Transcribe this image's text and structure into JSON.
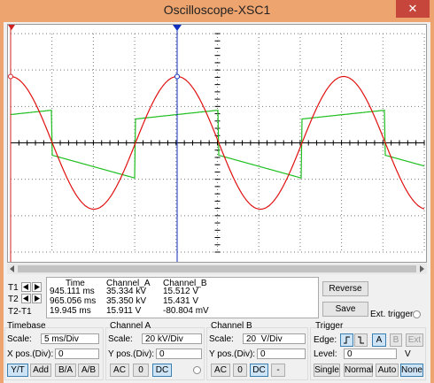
{
  "window": {
    "title": "Oscilloscope-XSC1"
  },
  "readout": {
    "headers": [
      "Time",
      "Channel_A",
      "Channel_B"
    ],
    "rows": [
      {
        "label": "T1",
        "values": [
          "945.111 ms",
          "35.334 kV",
          "15.512 V"
        ]
      },
      {
        "label": "T2",
        "values": [
          "965.056 ms",
          "35.350 kV",
          "15.431 V"
        ]
      },
      {
        "label": "T2-T1",
        "values": [
          "19.945 ms",
          "15.911 V",
          "-80.804 mV"
        ]
      }
    ]
  },
  "buttons": {
    "reverse": "Reverse",
    "save": "Save",
    "ext_trigger": "Ext. trigger"
  },
  "timebase": {
    "title": "Timebase",
    "scale_label": "Scale:",
    "scale": "5 ms/Div",
    "pos_label": "X pos.(Div):",
    "pos": "0",
    "modes": [
      "Y/T",
      "Add",
      "B/A",
      "A/B"
    ]
  },
  "channel_a": {
    "title": "Channel A",
    "scale_label": "Scale:",
    "scale": "20 kV/Div",
    "pos_label": "Y pos.(Div):",
    "pos": "0",
    "coupling": [
      "AC",
      "0",
      "DC"
    ]
  },
  "channel_b": {
    "title": "Channel B",
    "scale_label": "Scale:",
    "scale": "20  V/Div",
    "pos_label": "Y pos.(Div):",
    "pos": "0",
    "coupling": [
      "AC",
      "0",
      "DC",
      "-"
    ]
  },
  "trigger": {
    "title": "Trigger",
    "edge_label": "Edge:",
    "sources": [
      "A",
      "B",
      "Ext"
    ],
    "level_label": "Level:",
    "level": "0",
    "level_unit": "V",
    "types": [
      "Single",
      "Normal",
      "Auto",
      "None"
    ]
  }
}
